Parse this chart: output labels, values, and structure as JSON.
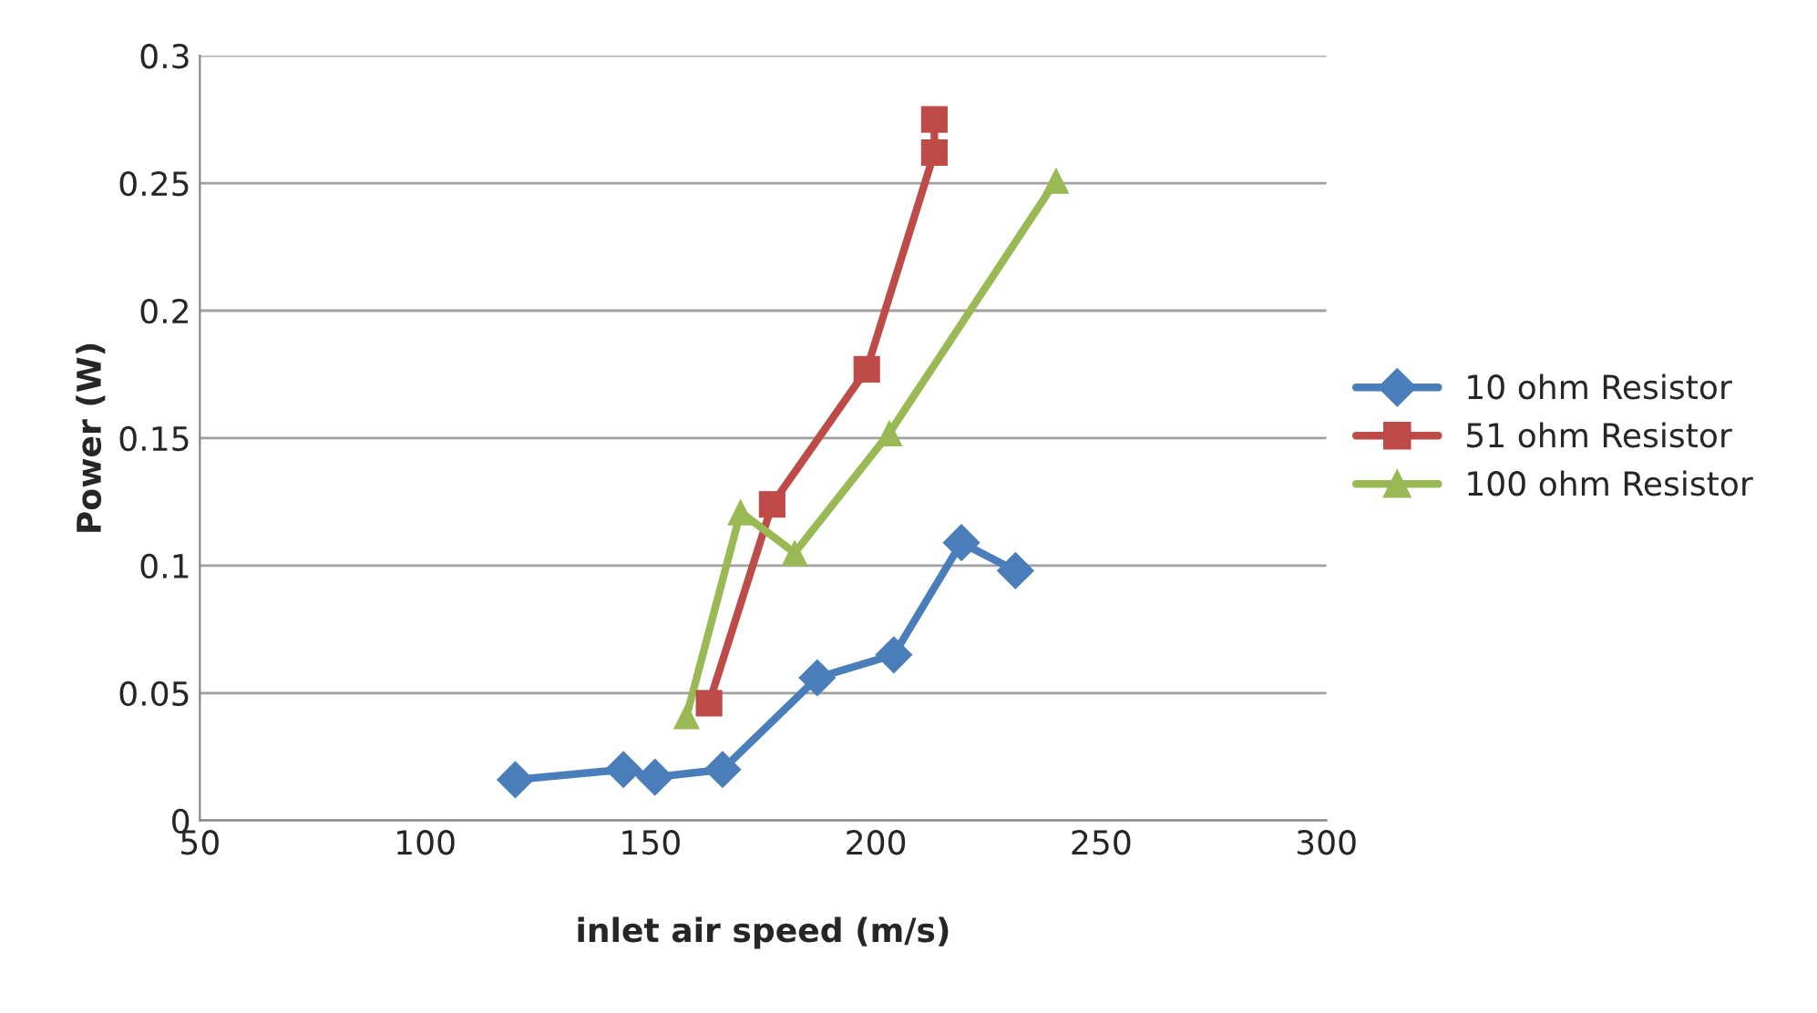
{
  "chart_data": {
    "type": "line",
    "xlabel": "inlet air speed (m/s)",
    "ylabel": "Power (W)",
    "xlim": [
      50,
      300
    ],
    "xticks": [
      50,
      100,
      150,
      200,
      250,
      300
    ],
    "ylim": [
      0,
      0.3
    ],
    "yticks": [
      0,
      0.05,
      0.1,
      0.15,
      0.2,
      0.25,
      0.3
    ],
    "grid": "y",
    "legend": "right",
    "line_style": "solid",
    "series": [
      {
        "name": "10 ohm Resistor",
        "color": "#4a7ebb",
        "marker": "diamond",
        "x": [
          120,
          144,
          151,
          166,
          187,
          204,
          219,
          231
        ],
        "values": [
          0.016,
          0.02,
          0.017,
          0.02,
          0.056,
          0.065,
          0.109,
          0.098
        ]
      },
      {
        "name": "51 ohm Resistor",
        "color": "#be4b48",
        "marker": "square",
        "x": [
          163,
          177,
          198,
          213,
          213
        ],
        "values": [
          0.046,
          0.124,
          0.177,
          0.262,
          0.275
        ]
      },
      {
        "name": "100 ohm Resistor",
        "color": "#98b954",
        "marker": "triangle",
        "x": [
          158,
          170,
          182,
          203,
          240
        ],
        "values": [
          0.041,
          0.121,
          0.105,
          0.152,
          0.251
        ]
      }
    ]
  }
}
